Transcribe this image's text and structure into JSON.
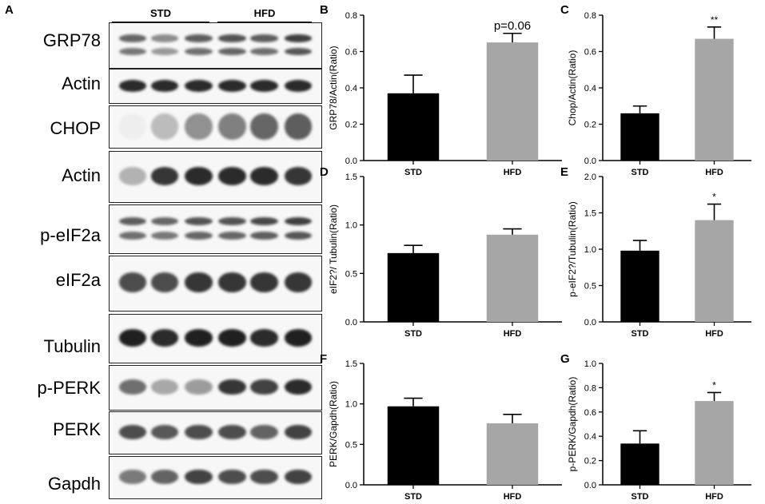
{
  "figure": {
    "panel_a": {
      "letter": "A",
      "groups": [
        {
          "label": "STD"
        },
        {
          "label": "HFD"
        }
      ],
      "blots": [
        {
          "label": "GRP78",
          "intensity": [
            0.75,
            0.55,
            0.8,
            0.85,
            0.8,
            0.95
          ],
          "style": "double"
        },
        {
          "label": "Actin",
          "intensity": [
            0.9,
            0.9,
            0.9,
            0.9,
            0.9,
            0.9
          ],
          "style": "single"
        },
        {
          "label": "CHOP",
          "intensity": [
            0.05,
            0.35,
            0.6,
            0.7,
            0.85,
            0.9
          ],
          "style": "diffuse"
        },
        {
          "label": "Actin",
          "intensity": [
            0.3,
            0.85,
            0.9,
            0.9,
            0.9,
            0.85
          ],
          "style": "single"
        },
        {
          "label": "p-eIF2a",
          "intensity": [
            0.8,
            0.75,
            0.85,
            0.85,
            0.9,
            0.95
          ],
          "style": "double"
        },
        {
          "label": "eIF2a",
          "intensity": [
            0.75,
            0.75,
            0.85,
            0.85,
            0.85,
            0.85
          ],
          "style": "single"
        },
        {
          "label": "Tubulin",
          "intensity": [
            0.95,
            0.9,
            0.95,
            0.95,
            0.9,
            0.95
          ],
          "style": "single"
        },
        {
          "label": "p-PERK",
          "intensity": [
            0.6,
            0.35,
            0.4,
            0.85,
            0.8,
            0.9
          ],
          "style": "single"
        },
        {
          "label": "PERK",
          "intensity": [
            0.75,
            0.7,
            0.75,
            0.75,
            0.65,
            0.8
          ],
          "style": "single"
        },
        {
          "label": "Gapdh",
          "intensity": [
            0.55,
            0.65,
            0.8,
            0.75,
            0.75,
            0.8
          ],
          "style": "single"
        }
      ]
    }
  },
  "chart_data": [
    {
      "panel": "B",
      "type": "bar",
      "categories": [
        "STD",
        "HFD"
      ],
      "values": [
        0.37,
        0.65
      ],
      "errors": [
        0.1,
        0.05
      ],
      "colors": [
        "#000000",
        "#a6a6a6"
      ],
      "ylabel": "GRP78/Actin(Ratio)",
      "ylim": [
        0,
        0.8
      ],
      "yticks": [
        "0.0",
        "0.2",
        "0.4",
        "0.6",
        "0.8"
      ],
      "annotation": "p=0.06",
      "annotation_size": 15
    },
    {
      "panel": "C",
      "type": "bar",
      "categories": [
        "STD",
        "HFD"
      ],
      "values": [
        0.26,
        0.67
      ],
      "errors": [
        0.04,
        0.065
      ],
      "colors": [
        "#000000",
        "#a6a6a6"
      ],
      "ylabel": "Chop/Actin(Ratio)",
      "ylim": [
        0,
        0.8
      ],
      "yticks": [
        "0.0",
        "0.2",
        "0.4",
        "0.6",
        "0.8"
      ],
      "annotation": "**",
      "annotation_size": 12
    },
    {
      "panel": "D",
      "type": "bar",
      "categories": [
        "STD",
        "HFD"
      ],
      "values": [
        0.71,
        0.9
      ],
      "errors": [
        0.08,
        0.06
      ],
      "colors": [
        "#000000",
        "#a6a6a6"
      ],
      "ylabel": "eIF2?/ Tubulin(Ratio)",
      "ylim": [
        0,
        1.5
      ],
      "yticks": [
        "0.0",
        "0.5",
        "1.0",
        "1.5"
      ],
      "annotation": "",
      "annotation_size": 12
    },
    {
      "panel": "E",
      "type": "bar",
      "categories": [
        "STD",
        "HFD"
      ],
      "values": [
        0.98,
        1.4
      ],
      "errors": [
        0.14,
        0.22
      ],
      "colors": [
        "#000000",
        "#a6a6a6"
      ],
      "ylabel": "p-eIF2?/Tubulin(Ratio)",
      "ylim": [
        0,
        2.0
      ],
      "yticks": [
        "0.0",
        "0.5",
        "1.0",
        "1.5",
        "2.0"
      ],
      "annotation": "*",
      "annotation_size": 12
    },
    {
      "panel": "F",
      "type": "bar",
      "categories": [
        "STD",
        "HFD"
      ],
      "values": [
        0.97,
        0.76
      ],
      "errors": [
        0.1,
        0.11
      ],
      "colors": [
        "#000000",
        "#a6a6a6"
      ],
      "ylabel": "PERK/Gapdh(Ratio)",
      "ylim": [
        0,
        1.5
      ],
      "yticks": [
        "0.0",
        "0.5",
        "1.0",
        "1.5"
      ],
      "annotation": "",
      "annotation_size": 12
    },
    {
      "panel": "G",
      "type": "bar",
      "categories": [
        "STD",
        "HFD"
      ],
      "values": [
        0.34,
        0.69
      ],
      "errors": [
        0.105,
        0.07
      ],
      "colors": [
        "#000000",
        "#a6a6a6"
      ],
      "ylabel": "p-PERK/Gapdh(Ratio)",
      "ylim": [
        0,
        1.0
      ],
      "yticks": [
        "0.0",
        "0.2",
        "0.4",
        "0.6",
        "0.8",
        "1.0"
      ],
      "annotation": "*",
      "annotation_size": 12
    }
  ]
}
